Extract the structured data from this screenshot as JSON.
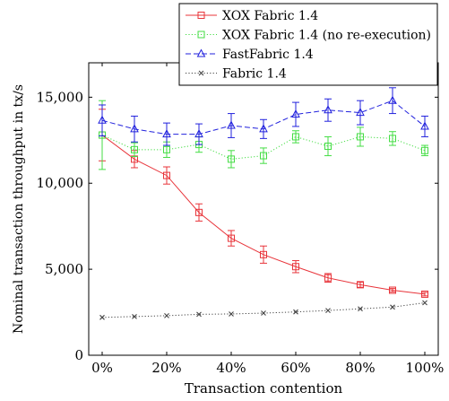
{
  "chart_data": {
    "type": "line",
    "xlabel": "Transaction contention",
    "ylabel": "Nominal transaction throughput in tx/s",
    "x": [
      0,
      10,
      20,
      30,
      40,
      50,
      60,
      70,
      80,
      90,
      100
    ],
    "x_unit": "%",
    "xlim": [
      0,
      100
    ],
    "ylim": [
      0,
      17000
    ],
    "x_ticks": [
      0,
      20,
      40,
      60,
      80,
      100
    ],
    "x_tick_labels": [
      "0%",
      "20%",
      "40%",
      "60%",
      "80%",
      "100%"
    ],
    "y_ticks": [
      0,
      5000,
      10000,
      15000
    ],
    "y_tick_labels": [
      "0",
      "5,000",
      "10,000",
      "15,000"
    ],
    "grid": false,
    "legend_position": "top-right (above plot)",
    "series": [
      {
        "name": "XOX Fabric 1.4",
        "color": "#e8343a",
        "line_style": "solid",
        "marker": "square",
        "values": [
          12800,
          11400,
          10450,
          8300,
          6800,
          5850,
          5150,
          4500,
          4100,
          3780,
          3550
        ],
        "errors": [
          1500,
          500,
          500,
          500,
          450,
          500,
          350,
          250,
          150,
          100,
          100
        ]
      },
      {
        "name": "XOX Fabric 1.4 (no re-execution)",
        "color": "#44dd44",
        "line_style": "dotted",
        "marker": "square",
        "values": [
          12800,
          11950,
          11950,
          12250,
          11400,
          11600,
          12700,
          12150,
          12700,
          12600,
          11900
        ],
        "errors": [
          2000,
          400,
          450,
          450,
          500,
          450,
          350,
          550,
          550,
          400,
          300
        ]
      },
      {
        "name": "FastFabric 1.4",
        "color": "#2222dd",
        "line_style": "dashed",
        "marker": "triangle",
        "values": [
          13650,
          13150,
          12850,
          12850,
          13350,
          13150,
          14000,
          14250,
          14100,
          14800,
          13300
        ],
        "errors": [
          900,
          750,
          650,
          600,
          700,
          550,
          700,
          650,
          700,
          750,
          600
        ]
      },
      {
        "name": "Fabric 1.4",
        "color": "#444444",
        "line_style": "dotted",
        "marker": "x",
        "values": [
          2200,
          2250,
          2300,
          2380,
          2400,
          2450,
          2520,
          2600,
          2700,
          2800,
          3050
        ],
        "errors": [
          0,
          0,
          0,
          0,
          0,
          0,
          0,
          0,
          0,
          0,
          0
        ]
      }
    ]
  }
}
